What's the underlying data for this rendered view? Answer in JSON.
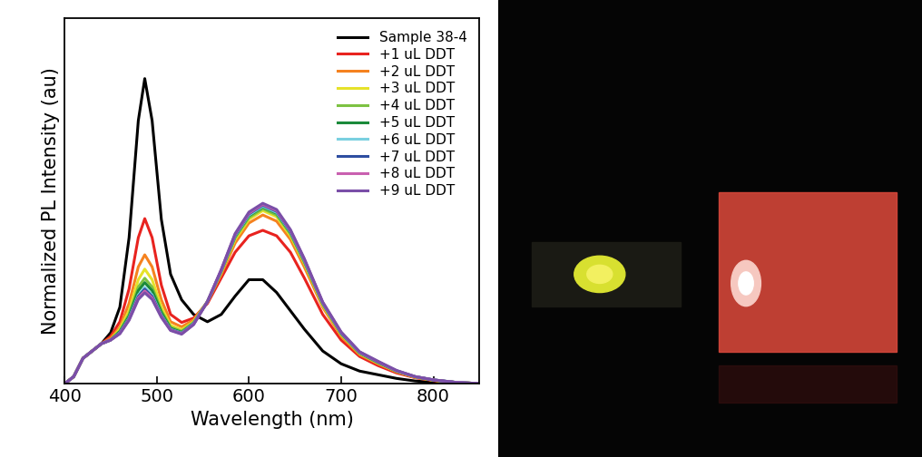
{
  "chart_data": {
    "type": "line",
    "x_label": "Wavelength (nm)",
    "y_label": "Normalized PL Intensity (au)",
    "x": [
      400,
      410,
      420,
      430,
      440,
      450,
      460,
      470,
      480,
      487,
      495,
      505,
      515,
      527,
      540,
      555,
      570,
      585,
      600,
      615,
      630,
      645,
      660,
      680,
      700,
      720,
      740,
      760,
      780,
      800,
      825,
      850
    ],
    "xlim": [
      400,
      850
    ],
    "xticks": [
      400,
      500,
      600,
      700,
      800
    ],
    "ylim": [
      0,
      1
    ],
    "tick_labels": "x",
    "legend": "upper right",
    "series": [
      {
        "name": "Sample 38-4",
        "color": "#000000",
        "values": [
          0,
          0.02,
          0.07,
          0.09,
          0.11,
          0.14,
          0.21,
          0.4,
          0.72,
          0.835,
          0.72,
          0.45,
          0.3,
          0.23,
          0.19,
          0.17,
          0.19,
          0.24,
          0.285,
          0.285,
          0.25,
          0.2,
          0.15,
          0.09,
          0.055,
          0.035,
          0.025,
          0.015,
          0.008,
          0.004,
          0.002,
          0
        ]
      },
      {
        "name": "+1 uL DDT",
        "color": "#e8231f",
        "values": [
          0,
          0.02,
          0.07,
          0.09,
          0.11,
          0.13,
          0.17,
          0.26,
          0.4,
          0.452,
          0.4,
          0.27,
          0.19,
          0.168,
          0.18,
          0.22,
          0.29,
          0.36,
          0.405,
          0.42,
          0.405,
          0.36,
          0.29,
          0.19,
          0.12,
          0.075,
          0.05,
          0.03,
          0.017,
          0.009,
          0.004,
          0.001
        ]
      },
      {
        "name": "+2 uL DDT",
        "color": "#f5821f",
        "values": [
          0,
          0.02,
          0.07,
          0.09,
          0.11,
          0.125,
          0.155,
          0.22,
          0.32,
          0.353,
          0.32,
          0.23,
          0.17,
          0.156,
          0.175,
          0.225,
          0.3,
          0.385,
          0.44,
          0.462,
          0.445,
          0.395,
          0.32,
          0.21,
          0.13,
          0.08,
          0.055,
          0.033,
          0.018,
          0.01,
          0.004,
          0.001
        ]
      },
      {
        "name": "+3 uL DDT",
        "color": "#e6e22a",
        "values": [
          0,
          0.02,
          0.07,
          0.09,
          0.11,
          0.12,
          0.15,
          0.2,
          0.285,
          0.314,
          0.285,
          0.21,
          0.16,
          0.148,
          0.17,
          0.225,
          0.305,
          0.395,
          0.45,
          0.474,
          0.457,
          0.405,
          0.33,
          0.215,
          0.135,
          0.083,
          0.057,
          0.034,
          0.019,
          0.01,
          0.004,
          0.001
        ]
      },
      {
        "name": "+4 uL DDT",
        "color": "#7dc242",
        "values": [
          0,
          0.02,
          0.07,
          0.09,
          0.11,
          0.12,
          0.145,
          0.19,
          0.265,
          0.289,
          0.265,
          0.2,
          0.155,
          0.144,
          0.168,
          0.225,
          0.307,
          0.4,
          0.455,
          0.479,
          0.462,
          0.41,
          0.333,
          0.218,
          0.137,
          0.084,
          0.058,
          0.035,
          0.019,
          0.01,
          0.004,
          0.001
        ]
      },
      {
        "name": "+5 uL DDT",
        "color": "#1a8a3a",
        "values": [
          0,
          0.02,
          0.07,
          0.09,
          0.11,
          0.12,
          0.143,
          0.185,
          0.255,
          0.277,
          0.255,
          0.195,
          0.152,
          0.141,
          0.166,
          0.225,
          0.309,
          0.403,
          0.46,
          0.484,
          0.467,
          0.414,
          0.336,
          0.22,
          0.138,
          0.085,
          0.059,
          0.035,
          0.02,
          0.011,
          0.004,
          0.001
        ]
      },
      {
        "name": "+6 uL DDT",
        "color": "#7ad0e0",
        "values": [
          0,
          0.02,
          0.07,
          0.09,
          0.11,
          0.12,
          0.14,
          0.18,
          0.243,
          0.264,
          0.243,
          0.188,
          0.149,
          0.139,
          0.165,
          0.225,
          0.31,
          0.405,
          0.462,
          0.486,
          0.469,
          0.416,
          0.338,
          0.221,
          0.139,
          0.086,
          0.06,
          0.036,
          0.02,
          0.011,
          0.004,
          0.001
        ]
      },
      {
        "name": "+7 uL DDT",
        "color": "#2e4ea1",
        "values": [
          0,
          0.02,
          0.07,
          0.09,
          0.11,
          0.12,
          0.139,
          0.178,
          0.239,
          0.259,
          0.239,
          0.186,
          0.148,
          0.138,
          0.164,
          0.225,
          0.311,
          0.407,
          0.465,
          0.489,
          0.472,
          0.418,
          0.34,
          0.222,
          0.14,
          0.087,
          0.06,
          0.036,
          0.02,
          0.011,
          0.004,
          0.001
        ]
      },
      {
        "name": "+8 uL DDT",
        "color": "#c960b0",
        "values": [
          0,
          0.02,
          0.07,
          0.09,
          0.11,
          0.12,
          0.138,
          0.176,
          0.235,
          0.254,
          0.235,
          0.184,
          0.147,
          0.137,
          0.163,
          0.225,
          0.312,
          0.409,
          0.467,
          0.491,
          0.474,
          0.42,
          0.341,
          0.223,
          0.141,
          0.087,
          0.061,
          0.036,
          0.02,
          0.011,
          0.004,
          0.001
        ]
      },
      {
        "name": "+9 uL DDT",
        "color": "#7a4fa8",
        "values": [
          0,
          0.02,
          0.07,
          0.09,
          0.11,
          0.12,
          0.137,
          0.174,
          0.231,
          0.249,
          0.231,
          0.182,
          0.146,
          0.136,
          0.162,
          0.225,
          0.313,
          0.411,
          0.47,
          0.494,
          0.477,
          0.422,
          0.343,
          0.224,
          0.142,
          0.088,
          0.062,
          0.037,
          0.02,
          0.011,
          0.004,
          0.001
        ]
      }
    ]
  }
}
